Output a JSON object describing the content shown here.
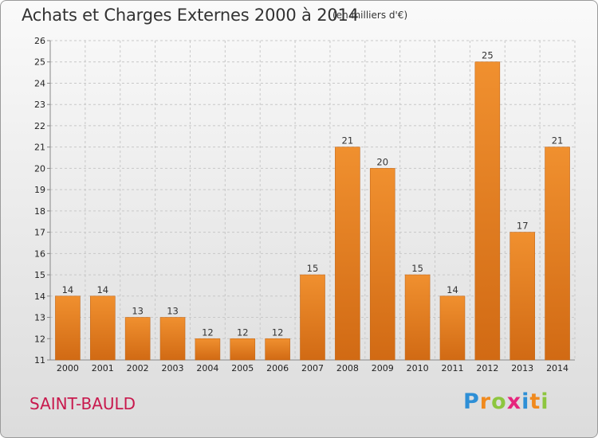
{
  "header": {
    "title": "Achats et Charges Externes 2000 à 2014",
    "unit_note": "(en milliers d'€)"
  },
  "footer": {
    "commune": "SAINT-BAULD",
    "brand_letters": [
      "P",
      "r",
      "o",
      "x",
      "i",
      "t",
      "i"
    ],
    "brand_colors": [
      "#2e8fd6",
      "#f08a1e",
      "#8dc63f",
      "#e6257d",
      "#2e8fd6",
      "#f08a1e",
      "#8dc63f"
    ]
  },
  "chart_data": {
    "type": "bar",
    "categories": [
      "2000",
      "2001",
      "2002",
      "2003",
      "2004",
      "2005",
      "2006",
      "2007",
      "2008",
      "2009",
      "2010",
      "2011",
      "2012",
      "2013",
      "2014"
    ],
    "values": [
      14,
      14,
      13,
      13,
      12,
      12,
      12,
      15,
      21,
      20,
      15,
      14,
      25,
      17,
      21
    ],
    "title": "Achats et Charges Externes 2000 à 2014",
    "unit": "(en milliers d'€)",
    "ylim": [
      11,
      26
    ],
    "yticks": [
      11,
      12,
      13,
      14,
      15,
      16,
      17,
      18,
      19,
      20,
      21,
      22,
      23,
      24,
      25,
      26
    ],
    "grid": true,
    "bar_color": "#f0902f",
    "bar_color_dark": "#d16a14"
  }
}
